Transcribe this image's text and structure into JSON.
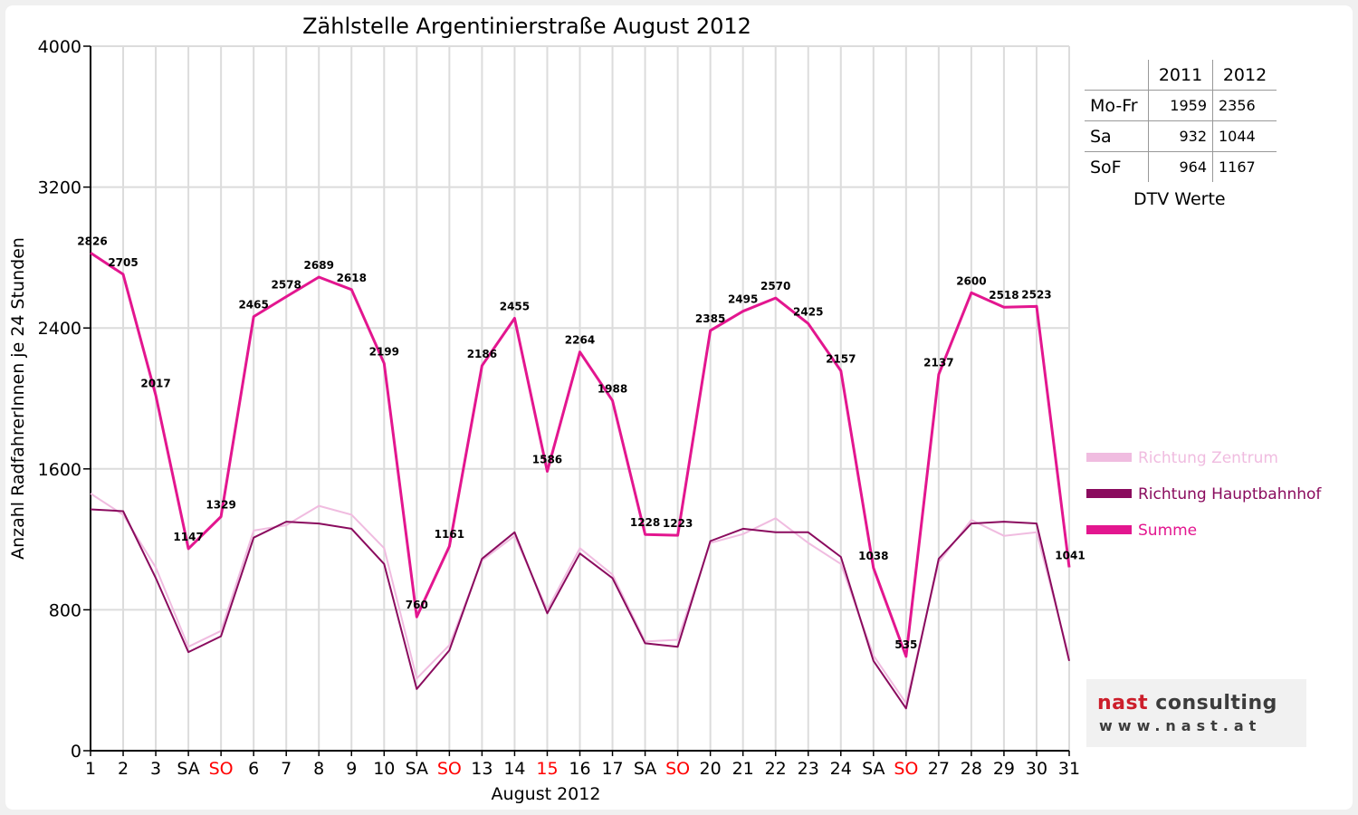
{
  "chart_data": {
    "type": "line",
    "title": "Zählstelle Argentinierstraße August 2012",
    "xlabel": "August 2012",
    "ylabel": "Anzahl RadfahrerInnen je 24 Stunden",
    "ylim": [
      0,
      4000
    ],
    "yticks": [
      0,
      800,
      1600,
      2400,
      3200,
      4000
    ],
    "grid": true,
    "legend_position": "right",
    "categories": [
      "1",
      "2",
      "3",
      "SA",
      "SO",
      "6",
      "7",
      "8",
      "9",
      "10",
      "SA",
      "SO",
      "13",
      "14",
      "15",
      "16",
      "17",
      "SA",
      "SO",
      "20",
      "21",
      "22",
      "23",
      "24",
      "SA",
      "SO",
      "27",
      "28",
      "29",
      "30",
      "31"
    ],
    "highlight_categories": [
      4,
      11,
      14,
      18,
      25
    ],
    "highlight_color": "#ff0000",
    "series": [
      {
        "name": "Richtung Zentrum",
        "color": "#f0bce0",
        "width": 2,
        "values": [
          1460,
          1340,
          1040,
          590,
          680,
          1250,
          1280,
          1390,
          1340,
          1150,
          410,
          600,
          1080,
          1220,
          800,
          1150,
          1000,
          620,
          630,
          1180,
          1230,
          1320,
          1180,
          1060,
          540,
          270,
          1070,
          1310,
          1220,
          1240,
          530
        ]
      },
      {
        "name": "Richtung Hauptbahnhof",
        "color": "#8a0b5e",
        "width": 2,
        "values": [
          1370,
          1360,
          980,
          560,
          650,
          1210,
          1300,
          1290,
          1260,
          1060,
          350,
          570,
          1090,
          1240,
          780,
          1120,
          980,
          610,
          590,
          1190,
          1260,
          1240,
          1240,
          1100,
          510,
          240,
          1090,
          1290,
          1300,
          1290,
          510
        ]
      },
      {
        "name": "Summe",
        "color": "#e3168f",
        "width": 3,
        "values": [
          2826,
          2705,
          2017,
          1147,
          1329,
          2465,
          2578,
          2689,
          2618,
          2199,
          760,
          1161,
          2186,
          2455,
          1586,
          2264,
          1988,
          1228,
          1223,
          2385,
          2495,
          2570,
          2425,
          2157,
          1038,
          535,
          2137,
          2600,
          2518,
          2523,
          1041
        ]
      }
    ],
    "data_labels": [
      "2826",
      "2705",
      "2017",
      "1147",
      "1329",
      "2465",
      "2578",
      "2689",
      "2618",
      "2199",
      "760",
      "1161",
      "2186",
      "2455",
      "1586",
      "2264",
      "1988",
      "1228",
      "1223",
      "2385",
      "2495",
      "2570",
      "2425",
      "2157",
      "1038",
      "535",
      "2137",
      "2600",
      "2518",
      "2523",
      "1041"
    ]
  },
  "dtv_table": {
    "headers": [
      "",
      "2011",
      "2012"
    ],
    "rows": [
      {
        "label": "Mo-Fr",
        "v2011": "1959",
        "v2012": "2356"
      },
      {
        "label": "Sa",
        "v2011": "932",
        "v2012": "1044"
      },
      {
        "label": "SoF",
        "v2011": "964",
        "v2012": "1167"
      }
    ],
    "caption": "DTV Werte"
  },
  "logo": {
    "brand_part1": "nast",
    "brand_part2": " consulting",
    "url": "www.nast.at"
  }
}
